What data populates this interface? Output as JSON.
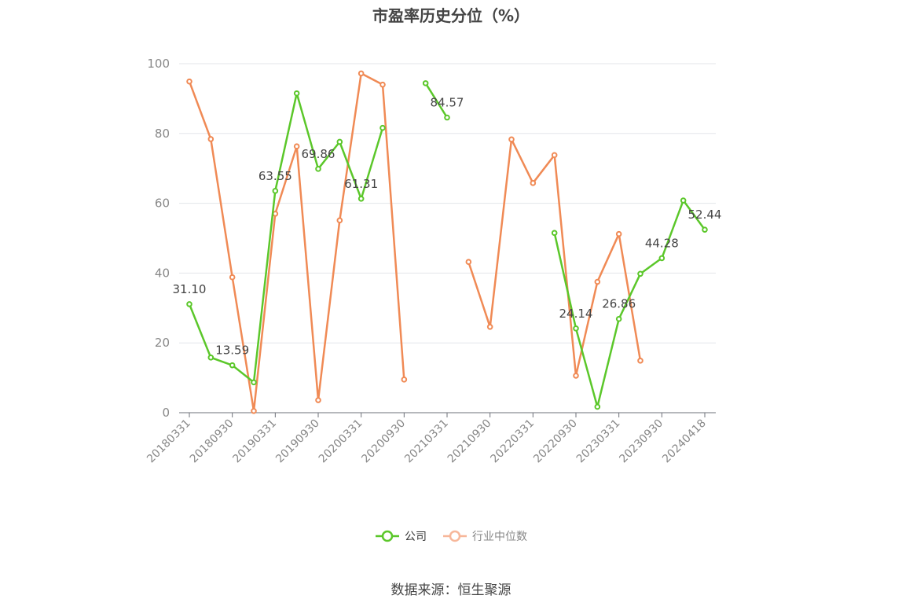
{
  "chart_data": {
    "type": "line",
    "title": "市盈率历史分位（%）",
    "xlabel": "",
    "ylabel": "",
    "ylim": [
      0,
      100
    ],
    "yticks": [
      0,
      20,
      40,
      60,
      80,
      100
    ],
    "grid": true,
    "legend_position": "bottom",
    "x": [
      "20180331",
      "20180630",
      "20180930",
      "20181231",
      "20190331",
      "20190630",
      "20190930",
      "20191231",
      "20200331",
      "20200630",
      "20200930",
      "20201231",
      "20210331",
      "20210630",
      "20210930",
      "20211231",
      "20220331",
      "20220630",
      "20220930",
      "20221231",
      "20230331",
      "20230630",
      "20230930",
      "20231231",
      "20240418"
    ],
    "x_tick_labels": [
      "20180331",
      "20180930",
      "20190331",
      "20190930",
      "20200331",
      "20200930",
      "20210331",
      "20210930",
      "20220331",
      "20220930",
      "20230331",
      "20230930",
      "20240418"
    ],
    "series": [
      {
        "name": "公司",
        "color": "#5bc72a",
        "values": [
          31.1,
          15.8,
          13.59,
          8.7,
          63.55,
          91.5,
          69.86,
          77.6,
          61.31,
          81.6,
          null,
          94.4,
          84.57,
          null,
          null,
          null,
          null,
          51.5,
          24.14,
          1.7,
          26.86,
          39.8,
          44.28,
          60.8,
          52.44
        ],
        "labels": {
          "0": "31.10",
          "2": "13.59",
          "4": "63.55",
          "6": "69.86",
          "8": "61.31",
          "12": "84.57",
          "18": "24.14",
          "20": "26.86",
          "22": "44.28",
          "24": "52.44"
        }
      },
      {
        "name": "行业中位数",
        "color": "#f08a55",
        "values": [
          94.9,
          78.4,
          38.8,
          0.5,
          57.0,
          76.3,
          3.6,
          55.1,
          97.2,
          94.0,
          9.5,
          null,
          null,
          43.2,
          24.6,
          78.3,
          65.8,
          73.8,
          10.6,
          37.5,
          51.2,
          14.9,
          null,
          null,
          null
        ]
      }
    ]
  },
  "source": "数据来源：恒生聚源"
}
